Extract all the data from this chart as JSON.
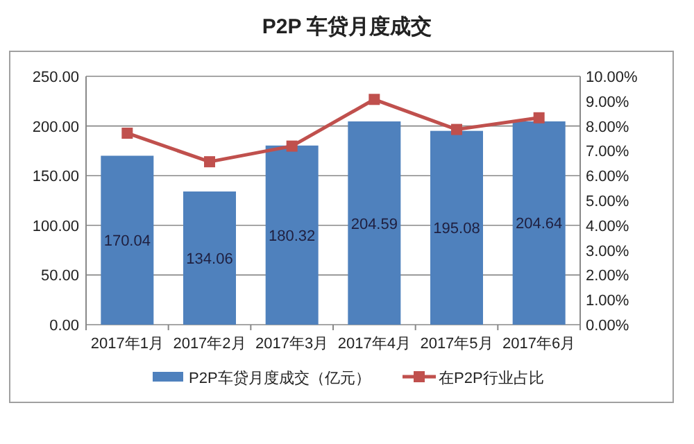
{
  "chart_data": {
    "type": "bar",
    "title": "P2P 车贷月度成交",
    "categories": [
      "2017年1月",
      "2017年2月",
      "2017年3月",
      "2017年4月",
      "2017年5月",
      "2017年6月"
    ],
    "series": [
      {
        "name": "P2P车贷月度成交（亿元）",
        "color": "#4f81bd",
        "values": [
          170.04,
          134.06,
          180.32,
          204.59,
          195.08,
          204.64
        ],
        "value_labels": [
          "170.04",
          "134.06",
          "180.32",
          "204.59",
          "195.08",
          "204.64"
        ]
      },
      {
        "name": "在P2P行业占比",
        "type": "line",
        "axis": "y2",
        "color": "#c0504d",
        "marker": "square",
        "values": [
          7.71,
          6.56,
          7.19,
          9.07,
          7.86,
          8.33
        ]
      }
    ],
    "ylim": [
      0,
      250
    ],
    "yticks": [
      {
        "value": 0,
        "label": "0.00"
      },
      {
        "value": 50,
        "label": "50.00"
      },
      {
        "value": 100,
        "label": "100.00"
      },
      {
        "value": 150,
        "label": "150.00"
      },
      {
        "value": 200,
        "label": "200.00"
      },
      {
        "value": 250,
        "label": "250.00"
      }
    ],
    "y2lim": [
      0,
      10
    ],
    "y2ticks": [
      {
        "value": 0,
        "label": "0.00%"
      },
      {
        "value": 1,
        "label": "1.00%"
      },
      {
        "value": 2,
        "label": "2.00%"
      },
      {
        "value": 3,
        "label": "3.00%"
      },
      {
        "value": 4,
        "label": "4.00%"
      },
      {
        "value": 5,
        "label": "5.00%"
      },
      {
        "value": 6,
        "label": "6.00%"
      },
      {
        "value": 7,
        "label": "7.00%"
      },
      {
        "value": 8,
        "label": "8.00%"
      },
      {
        "value": 9,
        "label": "9.00%"
      },
      {
        "value": 10,
        "label": "10.00%"
      }
    ],
    "grid": "y",
    "legend": "bottom"
  }
}
